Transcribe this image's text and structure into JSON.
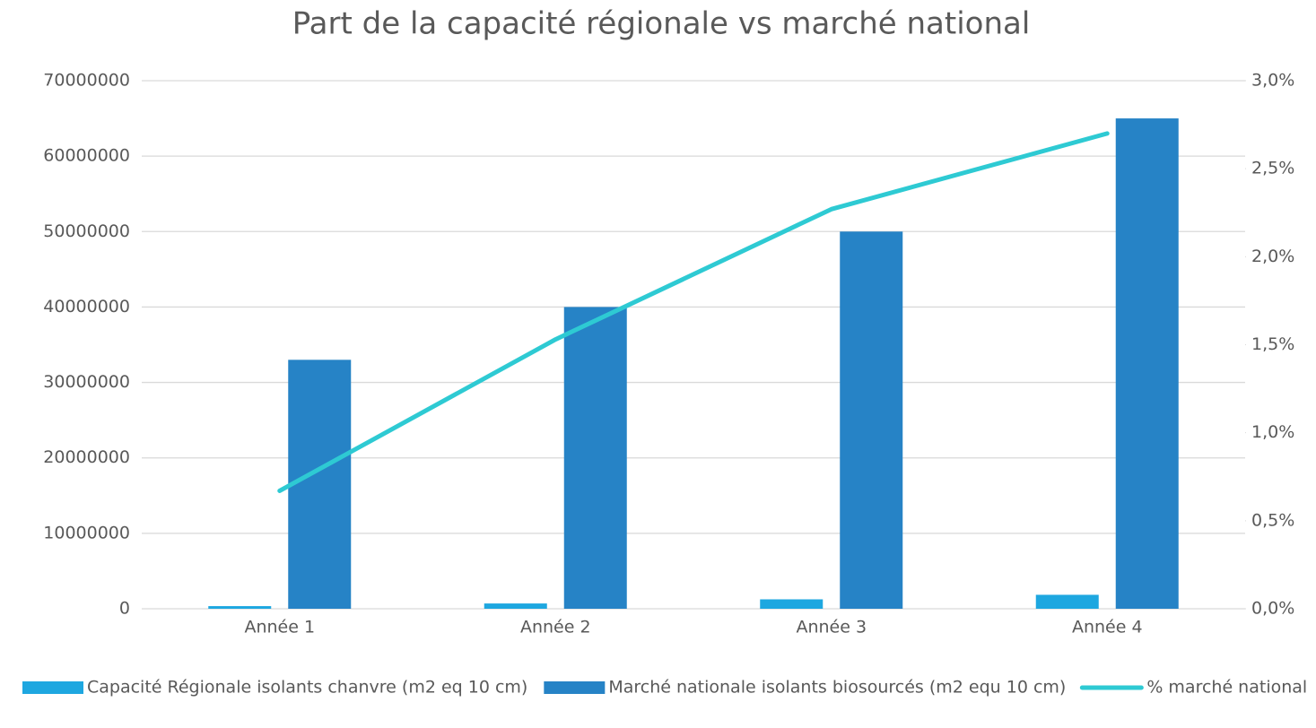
{
  "chart_data": {
    "type": "bar",
    "title": "Part de la capacité régionale vs marché national",
    "categories": [
      "Année 1",
      "Année 2",
      "Année 3",
      "Année 4"
    ],
    "series": [
      {
        "name": "Capacité Régionale isolants chanvre (m2 eq 10 cm)",
        "color": "#1ea7e0",
        "values": [
          350000,
          700000,
          1250000,
          1850000
        ]
      },
      {
        "name": "Marché nationale isolants biosourcés (m2 equ 10 cm)",
        "color": "#2683c6",
        "values": [
          33000000,
          40000000,
          50000000,
          65000000
        ]
      },
      {
        "name": "% marché national",
        "color": "#2ecad3",
        "type": "line",
        "axis": "y2",
        "values": [
          0.67,
          1.53,
          2.27,
          2.7
        ]
      }
    ],
    "ylim": [
      0,
      70000000
    ],
    "yticks": [
      0,
      10000000,
      20000000,
      30000000,
      40000000,
      50000000,
      60000000,
      70000000
    ],
    "y2lim": [
      0,
      3
    ],
    "y2ticks": [
      {
        "value": 0,
        "label": "0,0%"
      },
      {
        "value": 0.5,
        "label": "0,5%"
      },
      {
        "value": 1,
        "label": "1,0%"
      },
      {
        "value": 1.5,
        "label": "1,5%"
      },
      {
        "value": 2,
        "label": "2,0%"
      },
      {
        "value": 2.5,
        "label": "2,5%"
      },
      {
        "value": 3,
        "label": "3,0%"
      }
    ],
    "grid": true,
    "legend": "bottom"
  }
}
